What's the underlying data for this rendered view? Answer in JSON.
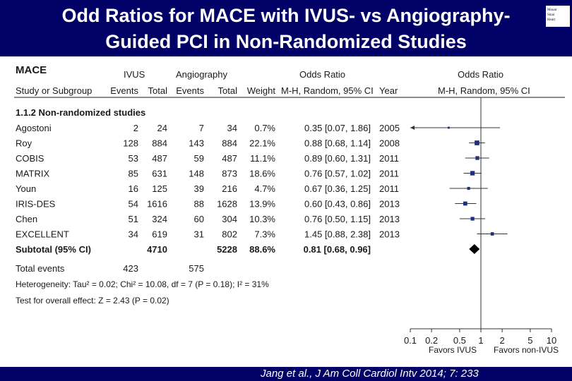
{
  "title": {
    "line1": "Odd Ratios for MACE with IVUS- vs Angiography-",
    "line2": "Guided PCI in Non-Randomized Studies"
  },
  "logo": {
    "lines": [
      "Mount",
      "Sinai",
      "Heart"
    ]
  },
  "citation": "Jang et al., J Am Coll Cardiol Intv 2014; 7: 233",
  "colors": {
    "banner": "#000066",
    "marker": "#1f2f7a",
    "text": "#1a1a1a"
  },
  "chart_data": {
    "type": "table",
    "outcome": "MACE",
    "headers": {
      "group1": "IVUS",
      "group2": "Angiography",
      "or_left": "Odds Ratio",
      "or_right": "Odds Ratio",
      "study": "Study or Subgroup",
      "events1": "Events",
      "total1": "Total",
      "events2": "Events",
      "total2": "Total",
      "weight": "Weight",
      "method_left": "M-H, Random, 95% CI",
      "year": "Year",
      "method_right": "M-H, Random, 95% CI"
    },
    "subgroup": "1.1.2 Non-randomized studies",
    "studies": [
      {
        "name": "Agostoni",
        "e1": "2",
        "t1": "24",
        "e2": "7",
        "t2": "34",
        "weight": "0.7%",
        "ci_text": "0.35 [0.07, 1.86]",
        "year": "2005",
        "or": 0.35,
        "lo": 0.07,
        "hi": 1.86,
        "w": 0.7
      },
      {
        "name": "Roy",
        "e1": "128",
        "t1": "884",
        "e2": "143",
        "t2": "884",
        "weight": "22.1%",
        "ci_text": "0.88 [0.68, 1.14]",
        "year": "2008",
        "or": 0.88,
        "lo": 0.68,
        "hi": 1.14,
        "w": 22.1
      },
      {
        "name": "COBIS",
        "e1": "53",
        "t1": "487",
        "e2": "59",
        "t2": "487",
        "weight": "11.1%",
        "ci_text": "0.89 [0.60, 1.31]",
        "year": "2011",
        "or": 0.89,
        "lo": 0.6,
        "hi": 1.31,
        "w": 11.1
      },
      {
        "name": "MATRIX",
        "e1": "85",
        "t1": "631",
        "e2": "148",
        "t2": "873",
        "weight": "18.6%",
        "ci_text": "0.76 [0.57, 1.02]",
        "year": "2011",
        "or": 0.76,
        "lo": 0.57,
        "hi": 1.02,
        "w": 18.6
      },
      {
        "name": "Youn",
        "e1": "16",
        "t1": "125",
        "e2": "39",
        "t2": "216",
        "weight": "4.7%",
        "ci_text": "0.67 [0.36, 1.25]",
        "year": "2011",
        "or": 0.67,
        "lo": 0.36,
        "hi": 1.25,
        "w": 4.7
      },
      {
        "name": "IRIS-DES",
        "e1": "54",
        "t1": "1616",
        "e2": "88",
        "t2": "1628",
        "weight": "13.9%",
        "ci_text": "0.60 [0.43, 0.86]",
        "year": "2013",
        "or": 0.6,
        "lo": 0.43,
        "hi": 0.86,
        "w": 13.9
      },
      {
        "name": "Chen",
        "e1": "51",
        "t1": "324",
        "e2": "60",
        "t2": "304",
        "weight": "10.3%",
        "ci_text": "0.76 [0.50, 1.15]",
        "year": "2013",
        "or": 0.76,
        "lo": 0.5,
        "hi": 1.15,
        "w": 10.3
      },
      {
        "name": "EXCELLENT",
        "e1": "34",
        "t1": "619",
        "e2": "31",
        "t2": "802",
        "weight": "7.3%",
        "ci_text": "1.45 [0.88, 2.38]",
        "year": "2013",
        "or": 1.45,
        "lo": 0.88,
        "hi": 2.38,
        "w": 7.3
      }
    ],
    "subtotal": {
      "label": "Subtotal (95% CI)",
      "t1": "4710",
      "t2": "5228",
      "weight": "88.6%",
      "ci_text": "0.81 [0.68, 0.96]",
      "or": 0.81,
      "lo": 0.68,
      "hi": 0.96
    },
    "total_events": {
      "label": "Total events",
      "e1": "423",
      "e2": "575"
    },
    "heterogeneity": "Heterogeneity: Tau² = 0.02; Chi² = 10.08, df = 7 (P = 0.18); I² = 31%",
    "overall_effect": "Test for overall effect: Z = 2.43 (P = 0.02)",
    "axis": {
      "scale": "log",
      "range": [
        0.1,
        10
      ],
      "ticks": [
        0.1,
        0.2,
        0.5,
        1,
        2,
        5,
        10
      ],
      "tick_labels": [
        "0.1",
        "0.2",
        "0.5",
        "1",
        "2",
        "5",
        "10"
      ],
      "favors_left": "Favors IVUS",
      "favors_right": "Favors non-IVUS"
    }
  }
}
